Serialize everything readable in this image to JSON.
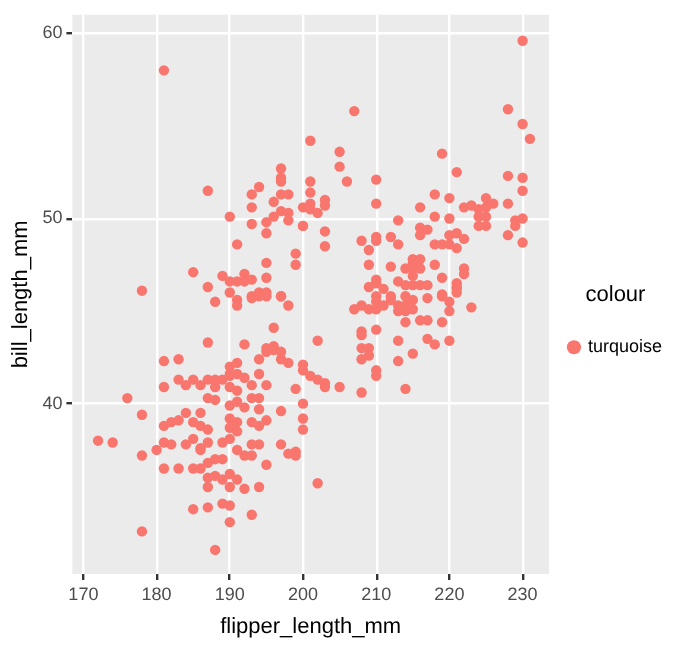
{
  "chart_data": {
    "type": "scatter",
    "xlabel": "flipper_length_mm",
    "ylabel": "bill_length_mm",
    "legend_title": "colour",
    "legend": "right",
    "grid": true,
    "marker": "circle",
    "xlim": [
      168.5,
      233.6
    ],
    "xticks": [
      170,
      180,
      190,
      200,
      210,
      220,
      230
    ],
    "ylim": [
      30.8,
      61
    ],
    "yticks": [
      40,
      50,
      60
    ],
    "series": [
      {
        "name": "turquoise",
        "color": "#f8766d",
        "x": [
          181,
          201,
          187,
          194,
          193,
          197,
          197,
          197,
          197,
          198,
          196,
          193,
          200,
          201,
          201,
          201,
          201,
          197,
          198,
          196,
          190,
          198,
          193,
          195,
          195,
          200,
          191,
          199,
          199,
          195,
          195,
          185,
          189,
          192,
          193,
          192,
          191,
          190,
          178,
          187,
          190,
          194,
          195,
          197,
          193,
          230,
          207,
          228,
          230,
          231,
          205,
          205,
          219,
          221,
          206,
          210,
          228,
          230,
          230,
          218,
          220,
          225,
          228,
          203,
          203,
          210,
          202,
          216,
          222,
          223,
          224,
          225,
          226,
          218,
          220,
          224,
          225,
          225,
          224,
          229,
          230,
          229,
          228,
          230,
          213,
          216,
          217,
          216,
          221,
          220,
          222,
          208,
          210,
          210,
          212,
          203,
          203,
          200,
          209,
          213,
          218,
          219,
          220,
          221,
          215,
          216,
          215,
          209,
          212,
          218,
          222,
          222,
          214,
          215,
          216,
          215,
          210,
          210,
          213,
          219,
          221,
          221,
          216,
          217,
          214,
          215,
          209,
          211,
          219,
          210,
          212,
          214,
          207,
          208,
          209,
          210,
          210,
          211,
          212,
          213,
          213,
          214,
          214,
          215,
          215,
          217,
          219,
          220,
          220,
          221,
          221,
          223,
          214,
          216,
          217,
          219,
          208,
          208,
          210,
          213,
          217,
          218,
          220,
          208,
          209,
          208,
          209,
          215,
          213,
          210,
          210,
          214,
          202,
          200,
          202,
          203,
          203,
          205,
          208,
          200,
          202,
          188,
          191,
          191,
          193,
          194,
          195,
          197,
          198,
          196,
          187,
          192,
          195,
          196,
          196,
          197,
          195,
          181,
          183,
          191,
          190,
          194,
          197,
          198,
          200,
          201,
          190,
          190,
          191,
          192,
          183,
          185,
          187,
          188,
          189,
          181,
          194,
          193,
          195,
          199,
          184,
          186,
          188,
          190,
          191,
          176,
          187,
          188,
          193,
          194,
          190,
          191,
          192,
          178,
          184,
          186,
          194,
          197,
          182,
          181,
          183,
          185,
          186,
          187,
          190,
          191,
          190,
          191,
          193,
          194,
          195,
          200,
          200,
          172,
          174,
          181,
          180,
          182,
          184,
          185,
          186,
          186,
          187,
          189,
          190,
          191,
          192,
          193,
          193,
          194,
          197,
          198,
          199,
          199,
          178,
          181,
          183,
          185,
          186,
          187,
          188,
          189,
          195,
          187,
          187,
          188,
          189,
          190,
          191,
          190,
          192,
          194,
          185,
          187,
          189,
          190,
          193,
          190,
          178,
          188
        ],
        "values": [
          58.0,
          54.2,
          51.5,
          51.7,
          51.3,
          52.7,
          52.2,
          52.0,
          51.3,
          51.3,
          50.9,
          50.6,
          50.6,
          50.8,
          50.5,
          52.0,
          51.4,
          50.4,
          50.3,
          50.1,
          50.1,
          49.9,
          49.7,
          49.8,
          49.2,
          49.6,
          48.6,
          48.1,
          47.5,
          47.6,
          46.8,
          47.1,
          46.9,
          47.0,
          46.7,
          46.6,
          46.6,
          46.6,
          46.1,
          46.3,
          46.0,
          46.0,
          46.0,
          45.8,
          45.7,
          59.6,
          55.8,
          55.9,
          55.1,
          54.3,
          53.6,
          52.8,
          53.5,
          52.5,
          52.0,
          52.1,
          52.3,
          52.2,
          51.5,
          51.3,
          51.1,
          51.1,
          50.8,
          51.0,
          50.7,
          50.8,
          50.3,
          50.6,
          50.6,
          50.7,
          50.5,
          50.6,
          50.8,
          50.1,
          50.0,
          50.1,
          50.1,
          49.6,
          49.6,
          49.9,
          50.0,
          49.6,
          49.1,
          48.7,
          49.9,
          49.5,
          49.4,
          49.1,
          49.2,
          49.1,
          48.9,
          48.8,
          49.0,
          48.8,
          49.0,
          49.3,
          48.5,
          49.6,
          48.3,
          48.6,
          48.6,
          48.6,
          48.6,
          48.4,
          47.8,
          47.8,
          47.6,
          47.5,
          47.4,
          47.5,
          47.3,
          47.0,
          47.3,
          47.3,
          47.3,
          46.9,
          46.7,
          46.5,
          46.6,
          46.8,
          46.5,
          46.3,
          46.4,
          46.4,
          46.4,
          46.4,
          46.3,
          46.2,
          45.9,
          45.8,
          45.8,
          45.8,
          45.1,
          45.3,
          45.1,
          45.5,
          45.1,
          45.3,
          45.6,
          45.3,
          45.0,
          45.0,
          45.3,
          45.6,
          45.1,
          45.7,
          45.8,
          45.5,
          45.0,
          46.2,
          46.0,
          45.2,
          44.4,
          44.5,
          44.5,
          44.4,
          43.9,
          43.7,
          44.0,
          43.4,
          43.5,
          43.2,
          43.4,
          43.0,
          43.0,
          42.4,
          42.6,
          42.7,
          42.3,
          41.8,
          41.5,
          40.8,
          43.4,
          41.8,
          41.3,
          41.1,
          40.9,
          40.9,
          40.6,
          40.0,
          35.7,
          45.5,
          45.6,
          45.3,
          45.8,
          45.8,
          45.8,
          45.8,
          45.3,
          44.1,
          43.3,
          43.2,
          43.0,
          43.1,
          42.9,
          42.8,
          42.8,
          42.3,
          42.4,
          42.2,
          42.0,
          42.4,
          42.4,
          42.2,
          42.1,
          41.5,
          41.5,
          41.6,
          41.6,
          41.4,
          41.3,
          41.3,
          41.3,
          41.3,
          41.3,
          40.9,
          41.6,
          41.0,
          41.0,
          40.8,
          41.0,
          41.0,
          40.9,
          40.9,
          40.7,
          40.3,
          40.3,
          40.2,
          40.3,
          40.3,
          39.9,
          40.1,
          39.8,
          39.4,
          39.5,
          39.5,
          39.7,
          39.6,
          39.0,
          38.8,
          39.1,
          39.0,
          38.8,
          38.6,
          39.2,
          39.0,
          38.7,
          38.5,
          39.0,
          38.8,
          39.1,
          39.2,
          38.6,
          38.0,
          37.9,
          37.9,
          37.5,
          37.8,
          37.8,
          38.1,
          37.5,
          37.6,
          37.9,
          37.9,
          38.1,
          37.5,
          37.2,
          37.8,
          37.2,
          37.8,
          37.8,
          37.3,
          37.4,
          37.2,
          37.2,
          36.5,
          36.5,
          36.5,
          36.5,
          36.8,
          37.0,
          37.0,
          36.7,
          36.0,
          35.5,
          36.1,
          35.9,
          36.2,
          35.9,
          35.5,
          35.4,
          35.5,
          34.3,
          34.4,
          34.6,
          34.5,
          34.0,
          33.6,
          33.1,
          32.1
        ]
      }
    ]
  }
}
